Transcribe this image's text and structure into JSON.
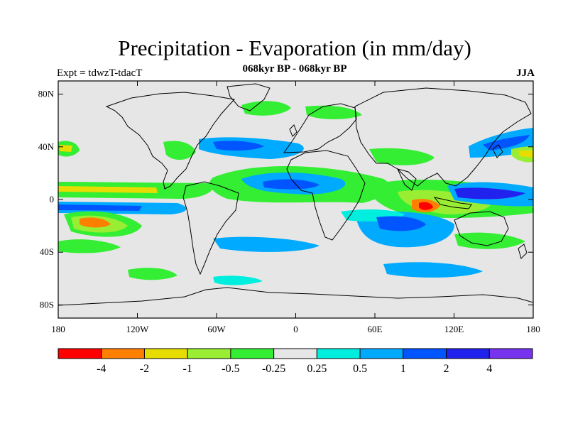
{
  "header": {
    "title": "Precipitation - Evaporation (in mm/day)",
    "subtitle": "068kyr BP - 068kyr BP",
    "left_label": "Expt = tdwzT-tdacT",
    "right_label": "JJA"
  },
  "map": {
    "lon_range": [
      -180,
      180
    ],
    "lat_range": [
      -90,
      90
    ],
    "y_ticks": [
      {
        "lat": 80,
        "label": "80N"
      },
      {
        "lat": 40,
        "label": "40N"
      },
      {
        "lat": 0,
        "label": "0"
      },
      {
        "lat": -40,
        "label": "40S"
      },
      {
        "lat": -80,
        "label": "80S"
      }
    ],
    "x_ticks": [
      {
        "lon": -180,
        "label": "180"
      },
      {
        "lon": -120,
        "label": "120W"
      },
      {
        "lon": -60,
        "label": "60W"
      },
      {
        "lon": 0,
        "label": "0"
      },
      {
        "lon": 60,
        "label": "60E"
      },
      {
        "lon": 120,
        "label": "120E"
      },
      {
        "lon": 180,
        "label": "180"
      }
    ],
    "background_color": "#e6e6e6",
    "coastline_color": "#000000"
  },
  "colorbar": {
    "colors": [
      "#ff0000",
      "#ff8000",
      "#e6dc00",
      "#99ee33",
      "#33ee33",
      "#e6e6e6",
      "#00eedd",
      "#00aaff",
      "#0055ff",
      "#2222ee",
      "#7733ee"
    ],
    "labels": [
      "-4",
      "-2",
      "-1",
      "-0.5",
      "-0.25",
      "0.25",
      "0.5",
      "1",
      "2",
      "4"
    ]
  }
}
